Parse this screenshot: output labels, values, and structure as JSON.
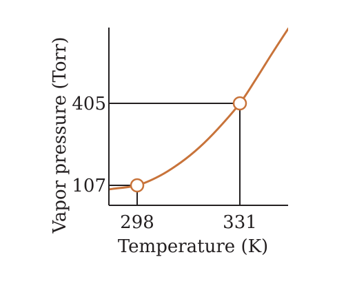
{
  "chart_data": {
    "type": "line",
    "title": "",
    "xlabel": "Temperature (K)",
    "ylabel": "Vapor pressure (Torr)",
    "x_ticks": [
      "298",
      "331"
    ],
    "y_ticks": [
      "107",
      "405"
    ],
    "xlim": [
      287,
      355
    ],
    "ylim": [
      60,
      700
    ],
    "curve": {
      "x": [
        284,
        290,
        298,
        305,
        312,
        318,
        324,
        331,
        336,
        341,
        345,
        350
      ],
      "y": [
        84,
        94,
        107,
        140,
        190,
        245,
        313,
        405,
        490,
        580,
        650,
        735
      ],
      "color": "#c8733a"
    },
    "points": [
      {
        "x": 298,
        "y": 107
      },
      {
        "x": 331,
        "y": 405
      }
    ],
    "grid": false,
    "legend": "none"
  }
}
